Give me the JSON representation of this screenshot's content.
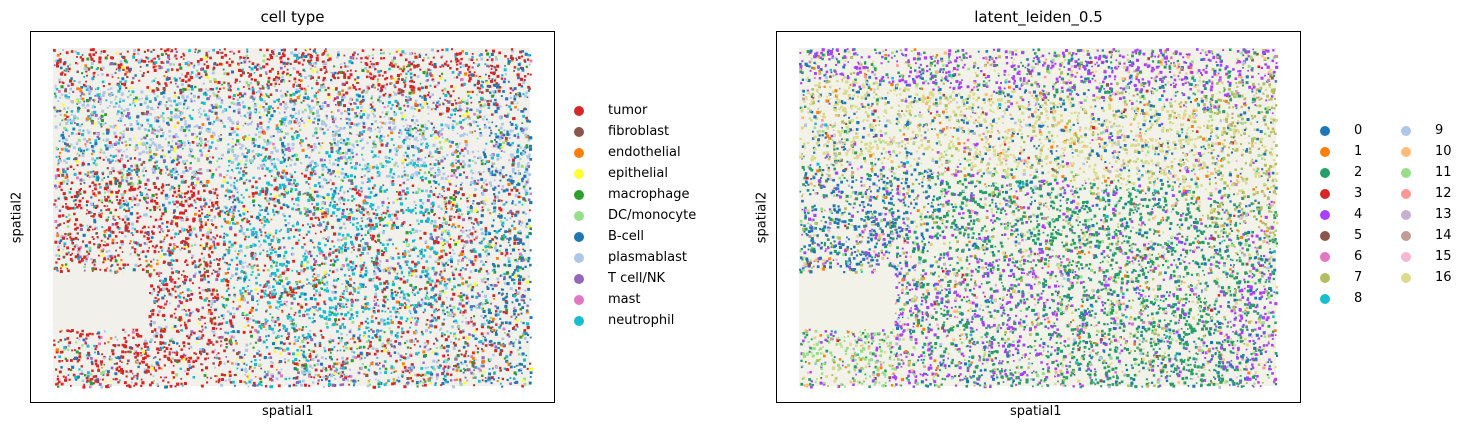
{
  "chart_data": [
    {
      "type": "scatter",
      "title": "cell type",
      "xlabel": "spatial1",
      "ylabel": "spatial2",
      "grid": false,
      "ticks": false,
      "legend_placement": "right",
      "background_color": "#f2f0ea",
      "series": [
        {
          "name": "tumor",
          "color": "#d62728",
          "share": 0.22
        },
        {
          "name": "fibroblast",
          "color": "#8c564b",
          "share": 0.06
        },
        {
          "name": "endothelial",
          "color": "#ff7f0e",
          "share": 0.05
        },
        {
          "name": "epithelial",
          "color": "#ffff33",
          "share": 0.03
        },
        {
          "name": "macrophage",
          "color": "#2ca02c",
          "share": 0.06
        },
        {
          "name": "DC/monocyte",
          "color": "#98df8a",
          "share": 0.05
        },
        {
          "name": "B-cell",
          "color": "#1f77b4",
          "share": 0.12
        },
        {
          "name": "plasmablast",
          "color": "#aec7e8",
          "share": 0.16
        },
        {
          "name": "T cell/NK",
          "color": "#9467bd",
          "share": 0.08
        },
        {
          "name": "mast",
          "color": "#e377c2",
          "share": 0.02
        },
        {
          "name": "neutrophil",
          "color": "#17becf",
          "share": 0.15
        }
      ]
    },
    {
      "type": "scatter",
      "title": "latent_leiden_0.5",
      "xlabel": "spatial1",
      "ylabel": "spatial2",
      "grid": false,
      "ticks": false,
      "legend_placement": "right",
      "legend_columns": 2,
      "background_color": "#f3f2e8",
      "series": [
        {
          "name": "0",
          "color": "#1f77b4",
          "share": 0.18
        },
        {
          "name": "1",
          "color": "#ff7f0e",
          "share": 0.04
        },
        {
          "name": "2",
          "color": "#279e68",
          "share": 0.24
        },
        {
          "name": "3",
          "color": "#d62728",
          "share": 0.01
        },
        {
          "name": "4",
          "color": "#aa40fc",
          "share": 0.17
        },
        {
          "name": "5",
          "color": "#8c564b",
          "share": 0.01
        },
        {
          "name": "6",
          "color": "#e377c2",
          "share": 0.01
        },
        {
          "name": "7",
          "color": "#b5bd61",
          "share": 0.1
        },
        {
          "name": "8",
          "color": "#17becf",
          "share": 0.01
        },
        {
          "name": "9",
          "color": "#aec7e8",
          "share": 0.02
        },
        {
          "name": "10",
          "color": "#ffbb78",
          "share": 0.03
        },
        {
          "name": "11",
          "color": "#98df8a",
          "share": 0.05
        },
        {
          "name": "12",
          "color": "#ff9896",
          "share": 0.01
        },
        {
          "name": "13",
          "color": "#c5b0d5",
          "share": 0.01
        },
        {
          "name": "14",
          "color": "#c49c94",
          "share": 0.01
        },
        {
          "name": "15",
          "color": "#f7b6d2",
          "share": 0.01
        },
        {
          "name": "16",
          "color": "#dbdb8d",
          "share": 0.09
        }
      ]
    }
  ]
}
